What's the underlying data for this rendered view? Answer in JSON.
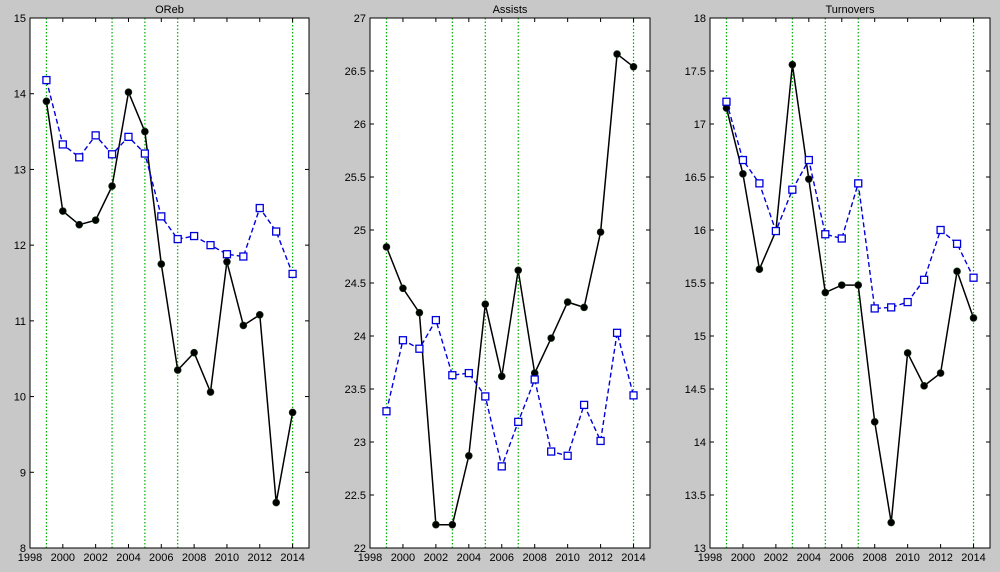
{
  "chart_data": [
    {
      "type": "line",
      "title": "OReb",
      "xlabel": "",
      "ylabel": "",
      "xlim": [
        1998,
        2015
      ],
      "ylim": [
        8,
        15
      ],
      "xticks": [
        1998,
        2000,
        2002,
        2004,
        2006,
        2008,
        2010,
        2012,
        2014
      ],
      "yticks": [
        8,
        9,
        10,
        11,
        12,
        13,
        14,
        15
      ],
      "vlines": [
        1999,
        2003,
        2005,
        2007,
        2014
      ],
      "x": [
        1999,
        2000,
        2001,
        2002,
        2003,
        2004,
        2005,
        2006,
        2007,
        2008,
        2009,
        2010,
        2011,
        2012,
        2013,
        2014
      ],
      "series": [
        {
          "style": "black-solid-dots",
          "values": [
            13.9,
            12.45,
            12.27,
            12.33,
            12.78,
            14.02,
            13.5,
            11.75,
            10.35,
            10.58,
            10.06,
            11.78,
            10.94,
            11.08,
            8.6,
            9.79
          ]
        },
        {
          "style": "blue-dashed-squares",
          "values": [
            14.18,
            13.33,
            13.16,
            13.45,
            13.2,
            13.43,
            13.21,
            12.38,
            12.08,
            12.12,
            12.0,
            11.88,
            11.85,
            12.49,
            12.18,
            11.62
          ]
        }
      ],
      "grid": false
    },
    {
      "type": "line",
      "title": "Assists",
      "xlabel": "",
      "ylabel": "",
      "xlim": [
        1998,
        2015
      ],
      "ylim": [
        22,
        27
      ],
      "xticks": [
        1998,
        2000,
        2002,
        2004,
        2006,
        2008,
        2010,
        2012,
        2014
      ],
      "yticks": [
        22,
        22.5,
        23,
        23.5,
        24,
        24.5,
        25,
        25.5,
        26,
        26.5,
        27
      ],
      "vlines": [
        1999,
        2003,
        2005,
        2007,
        2014
      ],
      "x": [
        1999,
        2000,
        2001,
        2002,
        2003,
        2004,
        2005,
        2006,
        2007,
        2008,
        2009,
        2010,
        2011,
        2012,
        2013,
        2014
      ],
      "series": [
        {
          "style": "black-solid-dots",
          "values": [
            24.84,
            24.45,
            24.22,
            22.22,
            22.22,
            22.87,
            24.3,
            23.62,
            24.62,
            23.65,
            23.98,
            24.32,
            24.27,
            24.98,
            26.66,
            26.54
          ]
        },
        {
          "style": "blue-dashed-squares",
          "values": [
            23.29,
            23.96,
            23.88,
            24.15,
            23.63,
            23.65,
            23.43,
            22.77,
            23.19,
            23.59,
            22.91,
            22.87,
            23.35,
            23.01,
            24.03,
            23.44
          ]
        }
      ],
      "grid": false
    },
    {
      "type": "line",
      "title": "Turnovers",
      "xlabel": "",
      "ylabel": "",
      "xlim": [
        1998,
        2015
      ],
      "ylim": [
        13,
        18
      ],
      "xticks": [
        1998,
        2000,
        2002,
        2004,
        2006,
        2008,
        2010,
        2012,
        2014
      ],
      "yticks": [
        13,
        13.5,
        14,
        14.5,
        15,
        15.5,
        16,
        16.5,
        17,
        17.5,
        18
      ],
      "vlines": [
        1999,
        2003,
        2005,
        2007,
        2014
      ],
      "x": [
        1999,
        2000,
        2001,
        2002,
        2003,
        2004,
        2005,
        2006,
        2007,
        2008,
        2009,
        2010,
        2011,
        2012,
        2013,
        2014
      ],
      "series": [
        {
          "style": "black-solid-dots",
          "values": [
            17.15,
            16.53,
            15.63,
            15.99,
            17.56,
            16.48,
            15.41,
            15.48,
            15.48,
            14.19,
            13.24,
            14.84,
            14.53,
            14.65,
            15.61,
            15.17
          ]
        },
        {
          "style": "blue-dashed-squares",
          "values": [
            17.21,
            16.66,
            16.44,
            15.99,
            16.38,
            16.66,
            15.96,
            15.92,
            16.44,
            15.26,
            15.27,
            15.32,
            15.53,
            16.0,
            15.87,
            15.55
          ]
        }
      ],
      "grid": false
    }
  ],
  "colors": {
    "background": "#c8c8c8",
    "axes_bg": "#ffffff",
    "vline": "#00b000",
    "series_black": "#000000",
    "series_blue": "#0000dd"
  }
}
